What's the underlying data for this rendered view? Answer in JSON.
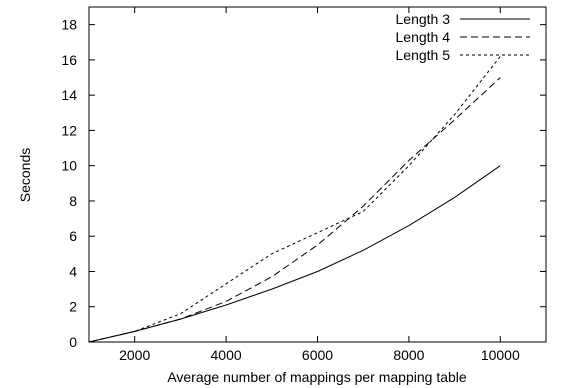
{
  "chart_data": {
    "type": "line",
    "title": "",
    "xlabel": "Average number of mappings per mapping table",
    "ylabel": "Seconds",
    "xlim": [
      1000,
      11000
    ],
    "ylim": [
      0,
      19
    ],
    "xticks": [
      2000,
      4000,
      6000,
      8000,
      10000
    ],
    "yticks": [
      0,
      2,
      4,
      6,
      8,
      10,
      12,
      14,
      16,
      18
    ],
    "grid": false,
    "legend_position": "top-right",
    "series": [
      {
        "name": "Length 3",
        "dash": "solid",
        "x": [
          1000,
          2000,
          3000,
          4000,
          5000,
          6000,
          7000,
          8000,
          9000,
          10000
        ],
        "y": [
          0,
          0.6,
          1.3,
          2.1,
          3.0,
          4.0,
          5.2,
          6.6,
          8.2,
          10.0
        ]
      },
      {
        "name": "Length 4",
        "dash": "dashed",
        "x": [
          1000,
          2000,
          3000,
          4000,
          5000,
          6000,
          7000,
          8000,
          9000,
          10000
        ],
        "y": [
          0,
          0.6,
          1.3,
          2.3,
          3.7,
          5.5,
          7.7,
          10.3,
          12.6,
          15.0
        ]
      },
      {
        "name": "Length 5",
        "dash": "dotted",
        "x": [
          1000,
          2000,
          3000,
          4000,
          5000,
          6000,
          7000,
          8000,
          9000,
          10000
        ],
        "y": [
          0,
          0.6,
          1.6,
          3.3,
          5.0,
          6.2,
          7.4,
          10.0,
          12.9,
          16.2
        ]
      }
    ]
  }
}
